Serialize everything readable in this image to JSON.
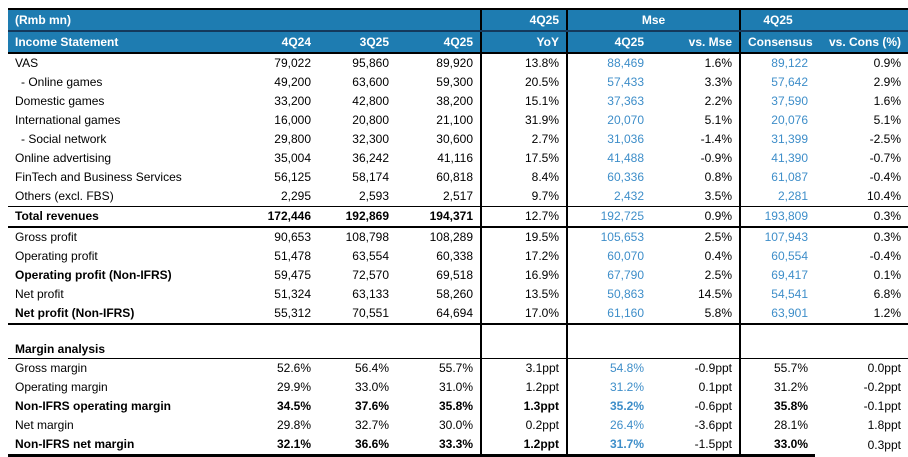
{
  "colors": {
    "header_background": "#1E7CB1",
    "header_divider": "#14395C",
    "estimate_text_blue": "#3E8EC9",
    "body_text": "#000000"
  },
  "chart_data": {
    "type": "table",
    "title": "(Rmb mn) Income Statement — actuals vs. Mse estimates and 4Q25 Consensus",
    "header_row1": {
      "left": "(Rmb mn)",
      "yoy_group": "4Q25",
      "mse_group": "Mse",
      "consensus_group": "4Q25"
    },
    "header_row2": [
      "Income Statement",
      "4Q24",
      "3Q25",
      "4Q25",
      "YoY",
      "4Q25",
      "vs. Mse",
      "Consensus",
      "vs. Cons (%)"
    ],
    "column_keys": [
      "4q24",
      "3q25",
      "4q25",
      "yoy",
      "mse-4q25",
      "vs-mse",
      "consensus",
      "vs-cons"
    ],
    "sections": [
      {
        "name": "income_statement",
        "rows": [
          {
            "label": "VAS",
            "indent": false,
            "bold_label": false,
            "bold_values": [],
            "blue_values": [
              4,
              6
            ],
            "classes": [],
            "values": [
              "79,022",
              "95,860",
              "89,920",
              "13.8%",
              "88,469",
              "1.6%",
              "89,122",
              "0.9%"
            ]
          },
          {
            "label": "- Online games",
            "indent": true,
            "bold_label": false,
            "bold_values": [],
            "blue_values": [
              4,
              6
            ],
            "classes": [],
            "values": [
              "49,200",
              "63,600",
              "59,300",
              "20.5%",
              "57,433",
              "3.3%",
              "57,642",
              "2.9%"
            ]
          },
          {
            "label": "Domestic games",
            "indent": false,
            "bold_label": false,
            "bold_values": [],
            "blue_values": [
              4,
              6
            ],
            "classes": [],
            "values": [
              "33,200",
              "42,800",
              "38,200",
              "15.1%",
              "37,363",
              "2.2%",
              "37,590",
              "1.6%"
            ]
          },
          {
            "label": "International games",
            "indent": false,
            "bold_label": false,
            "bold_values": [],
            "blue_values": [
              4,
              6
            ],
            "classes": [],
            "values": [
              "16,000",
              "20,800",
              "21,100",
              "31.9%",
              "20,070",
              "5.1%",
              "20,076",
              "5.1%"
            ]
          },
          {
            "label": "- Social network",
            "indent": true,
            "bold_label": false,
            "bold_values": [],
            "blue_values": [
              4,
              6
            ],
            "classes": [],
            "values": [
              "29,800",
              "32,300",
              "30,600",
              "2.7%",
              "31,036",
              "-1.4%",
              "31,399",
              "-2.5%"
            ]
          },
          {
            "label": "Online advertising",
            "indent": false,
            "bold_label": false,
            "bold_values": [],
            "blue_values": [
              4,
              6
            ],
            "classes": [],
            "values": [
              "35,004",
              "36,242",
              "41,116",
              "17.5%",
              "41,488",
              "-0.9%",
              "41,390",
              "-0.7%"
            ]
          },
          {
            "label": "FinTech and Business Services",
            "indent": false,
            "bold_label": false,
            "bold_values": [],
            "blue_values": [
              4,
              6
            ],
            "classes": [],
            "values": [
              "56,125",
              "58,174",
              "60,818",
              "8.4%",
              "60,336",
              "0.8%",
              "61,087",
              "-0.4%"
            ]
          },
          {
            "label": "Others (excl. FBS)",
            "indent": false,
            "bold_label": false,
            "bold_values": [],
            "blue_values": [
              4,
              6
            ],
            "classes": [],
            "values": [
              "2,295",
              "2,593",
              "2,517",
              "9.7%",
              "2,432",
              "3.5%",
              "2,281",
              "10.4%"
            ]
          },
          {
            "label": "Total revenues",
            "indent": false,
            "bold_label": true,
            "bold_values": [
              0,
              1,
              2
            ],
            "blue_values": [
              4,
              6
            ],
            "classes": [
              "thin-top",
              "thick-bottom"
            ],
            "values": [
              "172,446",
              "192,869",
              "194,371",
              "12.7%",
              "192,725",
              "0.9%",
              "193,809",
              "0.3%"
            ]
          },
          {
            "label": "Gross profit",
            "indent": false,
            "bold_label": false,
            "bold_values": [],
            "blue_values": [
              4,
              6
            ],
            "classes": [],
            "values": [
              "90,653",
              "108,798",
              "108,289",
              "19.5%",
              "105,653",
              "2.5%",
              "107,943",
              "0.3%"
            ]
          },
          {
            "label": "Operating profit",
            "indent": false,
            "bold_label": false,
            "bold_values": [],
            "blue_values": [
              4,
              6
            ],
            "classes": [],
            "values": [
              "51,478",
              "63,554",
              "60,338",
              "17.2%",
              "60,070",
              "0.4%",
              "60,554",
              "-0.4%"
            ]
          },
          {
            "label": "Operating profit (Non-IFRS)",
            "indent": false,
            "bold_label": true,
            "bold_values": [],
            "blue_values": [
              4,
              6
            ],
            "classes": [],
            "values": [
              "59,475",
              "72,570",
              "69,518",
              "16.9%",
              "67,790",
              "2.5%",
              "69,417",
              "0.1%"
            ]
          },
          {
            "label": "Net profit",
            "indent": false,
            "bold_label": false,
            "bold_values": [],
            "blue_values": [
              4,
              6
            ],
            "classes": [],
            "values": [
              "51,324",
              "63,133",
              "58,260",
              "13.5%",
              "50,863",
              "14.5%",
              "54,541",
              "6.8%"
            ]
          },
          {
            "label": "Net profit (Non-IFRS)",
            "indent": false,
            "bold_label": true,
            "bold_values": [],
            "blue_values": [
              4,
              6
            ],
            "classes": [
              "thick-bottom"
            ],
            "values": [
              "55,312",
              "70,551",
              "64,694",
              "17.0%",
              "61,160",
              "5.8%",
              "63,901",
              "1.2%"
            ]
          }
        ]
      },
      {
        "name": "margin_analysis",
        "label": "Margin analysis",
        "rows": [
          {
            "label": "Gross margin",
            "indent": false,
            "bold_label": false,
            "bold_values": [],
            "blue_values": [
              4
            ],
            "classes": [],
            "values": [
              "52.6%",
              "56.4%",
              "55.7%",
              "3.1ppt",
              "54.8%",
              "-0.9ppt",
              "55.7%",
              "0.0ppt"
            ]
          },
          {
            "label": "Operating margin",
            "indent": false,
            "bold_label": false,
            "bold_values": [],
            "blue_values": [
              4
            ],
            "classes": [],
            "values": [
              "29.9%",
              "33.0%",
              "31.0%",
              "1.2ppt",
              "31.2%",
              "0.1ppt",
              "31.2%",
              "-0.2ppt"
            ]
          },
          {
            "label": "Non-IFRS operating margin",
            "indent": false,
            "bold_label": true,
            "bold_values": [
              0,
              1,
              2,
              3,
              4,
              6
            ],
            "blue_values": [
              4
            ],
            "classes": [],
            "values": [
              "34.5%",
              "37.6%",
              "35.8%",
              "1.3ppt",
              "35.2%",
              "-0.6ppt",
              "35.8%",
              "-0.1ppt"
            ]
          },
          {
            "label": "Net margin",
            "indent": false,
            "bold_label": false,
            "bold_values": [],
            "blue_values": [
              4
            ],
            "classes": [],
            "values": [
              "29.8%",
              "32.7%",
              "30.0%",
              "0.2ppt",
              "26.4%",
              "-3.6ppt",
              "28.1%",
              "1.8ppt"
            ]
          },
          {
            "label": "Non-IFRS net margin",
            "indent": false,
            "bold_label": true,
            "bold_values": [
              0,
              1,
              2,
              3,
              4,
              6
            ],
            "blue_values": [
              4
            ],
            "classes": [
              "final"
            ],
            "values": [
              "32.1%",
              "36.6%",
              "33.3%",
              "1.2ppt",
              "31.7%",
              "-1.5ppt",
              "33.0%",
              "0.3ppt"
            ]
          }
        ]
      }
    ]
  }
}
